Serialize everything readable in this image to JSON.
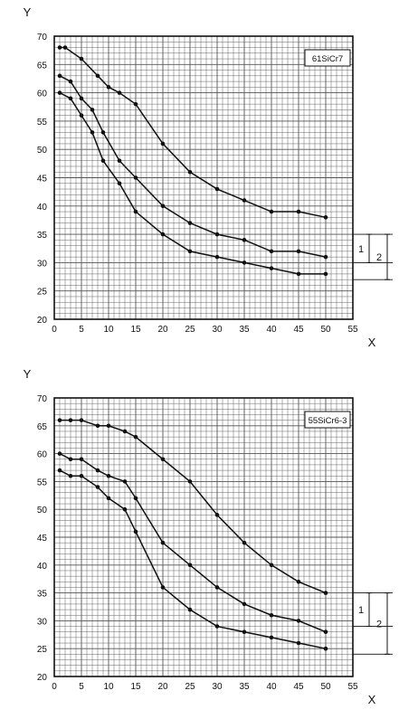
{
  "chart_data": [
    {
      "type": "line",
      "title": "61SiCr7",
      "xlabel": "X",
      "ylabel": "Y",
      "xlim": [
        0,
        55
      ],
      "ylim": [
        20,
        70
      ],
      "x_ticks": [
        "0",
        "5",
        "10",
        "15",
        "20",
        "25",
        "30",
        "35",
        "40",
        "45",
        "50",
        "55"
      ],
      "y_ticks": [
        "20",
        "25",
        "30",
        "35",
        "40",
        "45",
        "50",
        "55",
        "60",
        "65",
        "70"
      ],
      "grid": true,
      "series": [
        {
          "x": [
            1,
            2,
            5,
            8,
            10,
            12,
            15,
            20,
            25,
            30,
            35,
            40,
            45,
            50
          ],
          "y": [
            68,
            68,
            66,
            63,
            61,
            60,
            58,
            51,
            46,
            43,
            41,
            39,
            39,
            38
          ]
        },
        {
          "x": [
            1,
            3,
            5,
            7,
            9,
            12,
            15,
            20,
            25,
            30,
            35,
            40,
            45,
            50
          ],
          "y": [
            63,
            62,
            59,
            57,
            53,
            48,
            45,
            40,
            37,
            35,
            34,
            32,
            32,
            31
          ]
        },
        {
          "x": [
            1,
            3,
            5,
            7,
            9,
            12,
            15,
            20,
            25,
            30,
            35,
            40,
            45,
            50
          ],
          "y": [
            60,
            59,
            56,
            53,
            48,
            44,
            39,
            35,
            32,
            31,
            30,
            29,
            28,
            28
          ]
        }
      ],
      "side_brackets": [
        {
          "label": "1",
          "from": 30,
          "to": 35
        },
        {
          "label": "2",
          "from": 27,
          "to": 35
        }
      ]
    },
    {
      "type": "line",
      "title": "55SiCr6-3",
      "xlabel": "X",
      "ylabel": "Y",
      "xlim": [
        0,
        55
      ],
      "ylim": [
        20,
        70
      ],
      "x_ticks": [
        "0",
        "5",
        "10",
        "15",
        "20",
        "25",
        "30",
        "35",
        "40",
        "45",
        "50",
        "55"
      ],
      "y_ticks": [
        "20",
        "25",
        "30",
        "35",
        "40",
        "45",
        "50",
        "55",
        "60",
        "65",
        "70"
      ],
      "grid": true,
      "series": [
        {
          "x": [
            1,
            3,
            5,
            8,
            10,
            13,
            15,
            20,
            25,
            30,
            35,
            40,
            45,
            50
          ],
          "y": [
            66,
            66,
            66,
            65,
            65,
            64,
            63,
            59,
            55,
            49,
            44,
            40,
            37,
            35
          ]
        },
        {
          "x": [
            1,
            3,
            5,
            8,
            10,
            13,
            15,
            20,
            25,
            30,
            35,
            40,
            45,
            50
          ],
          "y": [
            60,
            59,
            59,
            57,
            56,
            55,
            52,
            44,
            40,
            36,
            33,
            31,
            30,
            28
          ]
        },
        {
          "x": [
            1,
            3,
            5,
            8,
            10,
            13,
            15,
            20,
            25,
            30,
            35,
            40,
            45,
            50
          ],
          "y": [
            57,
            56,
            56,
            54,
            52,
            50,
            46,
            36,
            32,
            29,
            28,
            27,
            26,
            25
          ]
        }
      ],
      "side_brackets": [
        {
          "label": "1",
          "from": 29,
          "to": 35
        },
        {
          "label": "2",
          "from": 24,
          "to": 35
        }
      ]
    }
  ]
}
